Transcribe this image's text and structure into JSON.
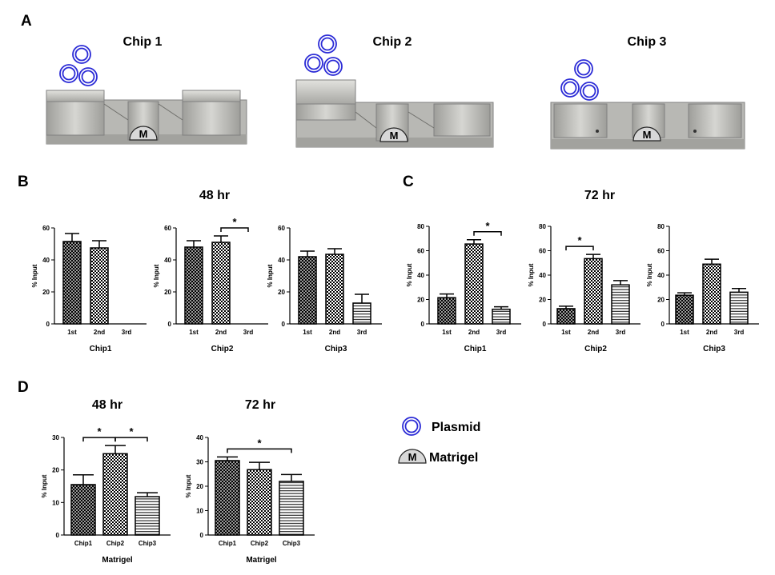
{
  "panel_labels": {
    "A": "A",
    "B": "B",
    "C": "C",
    "D": "D"
  },
  "chip_titles": [
    "Chip 1",
    "Chip 2",
    "Chip 3"
  ],
  "matrigel_symbol": "M",
  "section_titles": {
    "b": "48 hr",
    "c": "72 hr",
    "d48": "48 hr",
    "d72": "72 hr"
  },
  "legend": {
    "plasmid": "Plasmid",
    "matrigel": "Matrigel"
  },
  "colors": {
    "plasmid": "#2b2bd6",
    "matrigel_fill": "#d8d8d8",
    "chip_body": "#b8b8b4"
  },
  "chart_data": [
    {
      "id": "b1",
      "type": "bar",
      "categories": [
        "1st",
        "2nd",
        "3rd"
      ],
      "values": [
        51.5,
        47.5,
        0
      ],
      "errors": [
        5,
        4.5,
        0
      ],
      "patterns": [
        "crosshatch",
        "checker",
        "none"
      ],
      "ylabel": "% Input",
      "xlabel": "Chip1",
      "ylim": [
        0,
        60
      ],
      "yticks": [
        0,
        20,
        40,
        60
      ],
      "significance": []
    },
    {
      "id": "b2",
      "type": "bar",
      "categories": [
        "1st",
        "2nd",
        "3rd"
      ],
      "values": [
        48,
        51,
        0
      ],
      "errors": [
        4,
        4,
        0
      ],
      "patterns": [
        "crosshatch",
        "checker",
        "none"
      ],
      "ylabel": "% Input",
      "xlabel": "Chip2",
      "ylim": [
        0,
        60
      ],
      "yticks": [
        0,
        20,
        40,
        60
      ],
      "significance": [
        {
          "from": 1,
          "to": 2,
          "label": "*"
        }
      ]
    },
    {
      "id": "b3",
      "type": "bar",
      "categories": [
        "1st",
        "2nd",
        "3rd"
      ],
      "values": [
        42,
        43.5,
        13
      ],
      "errors": [
        3.5,
        3.5,
        5.5
      ],
      "patterns": [
        "crosshatch",
        "checker",
        "hlines"
      ],
      "ylabel": "% Input",
      "xlabel": "Chip3",
      "ylim": [
        0,
        60
      ],
      "yticks": [
        0,
        20,
        40,
        60
      ],
      "significance": []
    },
    {
      "id": "c1",
      "type": "bar",
      "categories": [
        "1st",
        "2nd",
        "3rd"
      ],
      "values": [
        21.5,
        65.5,
        12
      ],
      "errors": [
        3,
        3.5,
        2
      ],
      "patterns": [
        "crosshatch",
        "checker",
        "hlines"
      ],
      "ylabel": "% Input",
      "xlabel": "Chip1",
      "ylim": [
        0,
        80
      ],
      "yticks": [
        0,
        20,
        40,
        60,
        80
      ],
      "significance": [
        {
          "from": 1,
          "to": 2,
          "label": "*"
        }
      ]
    },
    {
      "id": "c2",
      "type": "bar",
      "categories": [
        "1st",
        "2nd",
        "3rd"
      ],
      "values": [
        12.5,
        53.5,
        32
      ],
      "errors": [
        2,
        3.5,
        3.5
      ],
      "patterns": [
        "crosshatch",
        "checker",
        "hlines"
      ],
      "ylabel": "% Input",
      "xlabel": "Chip2",
      "ylim": [
        0,
        80
      ],
      "yticks": [
        0,
        20,
        40,
        60,
        80
      ],
      "significance": [
        {
          "from": 0,
          "to": 1,
          "label": "*"
        }
      ]
    },
    {
      "id": "c3",
      "type": "bar",
      "categories": [
        "1st",
        "2nd",
        "3rd"
      ],
      "values": [
        23.5,
        49,
        26
      ],
      "errors": [
        2,
        4,
        3
      ],
      "patterns": [
        "crosshatch",
        "checker",
        "hlines"
      ],
      "ylabel": "% Input",
      "xlabel": "Chip3",
      "ylim": [
        0,
        80
      ],
      "yticks": [
        0,
        20,
        40,
        60,
        80
      ],
      "significance": []
    },
    {
      "id": "d1",
      "type": "bar",
      "categories": [
        "Chip1",
        "Chip2",
        "Chip3"
      ],
      "values": [
        15.5,
        25,
        11.8
      ],
      "errors": [
        3,
        2.5,
        1.2
      ],
      "patterns": [
        "crosshatch",
        "checker",
        "hlines"
      ],
      "ylabel": "% Input",
      "xlabel": "Matrigel",
      "ylim": [
        0,
        30
      ],
      "yticks": [
        0,
        10,
        20,
        30
      ],
      "significance": [
        {
          "from": 0,
          "to": 1,
          "label": "*"
        },
        {
          "from": 1,
          "to": 2,
          "label": "*"
        }
      ]
    },
    {
      "id": "d2",
      "type": "bar",
      "categories": [
        "Chip1",
        "Chip2",
        "Chip3"
      ],
      "values": [
        30.5,
        26.8,
        22
      ],
      "errors": [
        1.5,
        3,
        2.8
      ],
      "patterns": [
        "crosshatch",
        "checker",
        "hlines"
      ],
      "ylabel": "% Input",
      "xlabel": "Matrigel",
      "ylim": [
        0,
        40
      ],
      "yticks": [
        0,
        10,
        20,
        30,
        40
      ],
      "significance": [
        {
          "from": 0,
          "to": 2,
          "label": "*"
        }
      ]
    }
  ]
}
